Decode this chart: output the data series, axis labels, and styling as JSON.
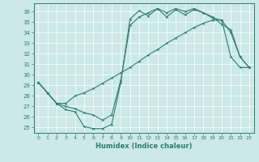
{
  "xlabel": "Humidex (Indice chaleur)",
  "bg_color": "#cce8e8",
  "line_color": "#2e7d6e",
  "xlim": [
    -0.5,
    23.5
  ],
  "ylim": [
    24.5,
    36.8
  ],
  "xticks": [
    0,
    1,
    2,
    3,
    4,
    5,
    6,
    7,
    8,
    9,
    10,
    11,
    12,
    13,
    14,
    15,
    16,
    17,
    18,
    19,
    20,
    21,
    22,
    23
  ],
  "yticks": [
    25,
    26,
    27,
    28,
    29,
    30,
    31,
    32,
    33,
    34,
    35,
    36
  ],
  "curve_top_x": [
    0,
    1,
    2,
    3,
    4,
    5,
    6,
    7,
    8,
    9,
    10,
    11,
    12,
    13,
    14,
    15,
    16,
    17,
    18,
    19,
    20,
    21,
    22,
    23
  ],
  "curve_top_y": [
    29.3,
    28.3,
    27.3,
    26.7,
    26.5,
    25.1,
    24.9,
    24.9,
    25.3,
    29.3,
    35.3,
    36.1,
    35.6,
    36.3,
    35.5,
    36.2,
    35.7,
    36.2,
    35.9,
    35.4,
    35.2,
    34.0,
    31.7,
    30.7
  ],
  "curve_mid_x": [
    0,
    1,
    2,
    3,
    4,
    5,
    6,
    7,
    8,
    9,
    10,
    11,
    12,
    13,
    14,
    15,
    16,
    17,
    18,
    19,
    20,
    21,
    22,
    23
  ],
  "curve_mid_y": [
    29.3,
    28.3,
    27.3,
    27.0,
    26.8,
    26.4,
    26.2,
    25.7,
    26.2,
    29.5,
    34.7,
    35.5,
    35.9,
    36.3,
    35.9,
    36.3,
    36.0,
    36.3,
    35.9,
    35.5,
    34.8,
    34.3,
    31.7,
    30.7
  ],
  "curve_bot_x": [
    0,
    1,
    2,
    3,
    4,
    5,
    6,
    7,
    8,
    9,
    10,
    11,
    12,
    13,
    14,
    15,
    16,
    17,
    18,
    19,
    20,
    21,
    22,
    23
  ],
  "curve_bot_y": [
    29.3,
    28.3,
    27.3,
    27.3,
    28.0,
    28.3,
    28.7,
    29.2,
    29.7,
    30.2,
    30.7,
    31.3,
    31.9,
    32.4,
    33.0,
    33.5,
    34.0,
    34.5,
    34.9,
    35.2,
    35.2,
    31.7,
    30.7,
    30.7
  ]
}
